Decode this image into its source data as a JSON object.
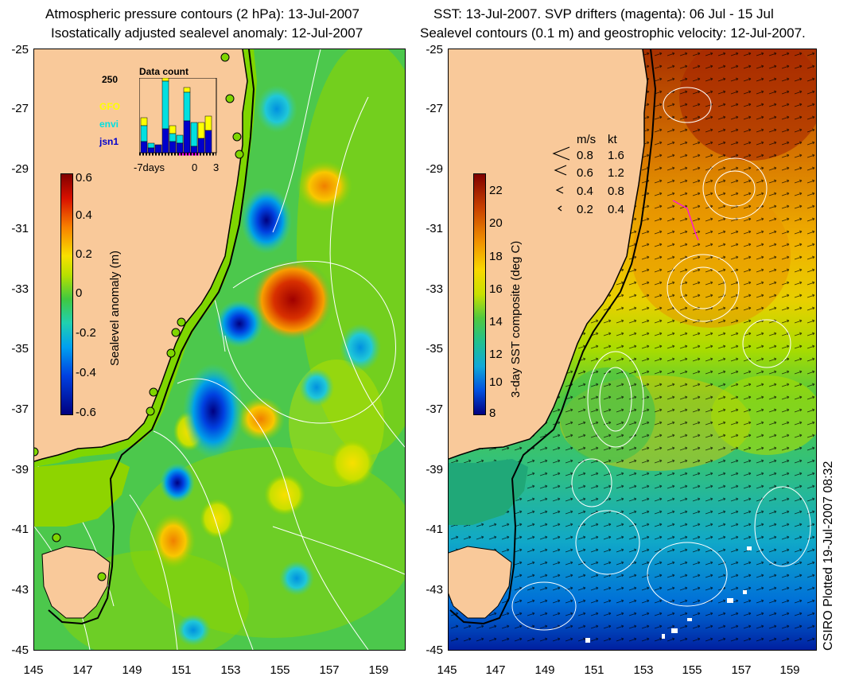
{
  "left_panel": {
    "title_line1": "Atmospheric pressure contours (2 hPa): 13-Jul-2007",
    "title_line2": "Isostatically adjusted sealevel anomaly: 12-Jul-2007",
    "colorbar_label": "Sealevel anomaly (m)",
    "colorbar_ticks": [
      "0.6",
      "0.4",
      "0.2",
      "0",
      "-0.2",
      "-0.4",
      "-0.6"
    ],
    "data_count": {
      "title": "Data count",
      "y_tick": "250",
      "x_ticks": [
        "-7days",
        "0",
        "3"
      ],
      "legend": [
        {
          "label": "GFO",
          "color": "#ffff00"
        },
        {
          "label": "envi",
          "color": "#00e0e0"
        },
        {
          "label": "jsn1",
          "color": "#0000cc"
        }
      ]
    }
  },
  "right_panel": {
    "title_line1": "SST: 13-Jul-2007. SVP drifters (magenta): 06 Jul - 15 Jul",
    "title_line2": "Sealevel contours (0.1 m) and geostrophic velocity: 12-Jul-2007.",
    "colorbar_label": "3-day SST composite (deg C)",
    "colorbar_ticks": [
      "22",
      "20",
      "18",
      "16",
      "14",
      "12",
      "10",
      "8"
    ],
    "velocity_legend": {
      "header_ms": "m/s",
      "header_kt": "kt",
      "rows": [
        {
          "ms": "0.8",
          "kt": "1.6"
        },
        {
          "ms": "0.6",
          "kt": "1.2"
        },
        {
          "ms": "0.4",
          "kt": "0.8"
        },
        {
          "ms": "0.2",
          "kt": "0.4"
        }
      ]
    }
  },
  "axes": {
    "y_ticks": [
      "-25",
      "-27",
      "-29",
      "-31",
      "-33",
      "-35",
      "-37",
      "-39",
      "-41",
      "-43",
      "-45"
    ],
    "x_ticks": [
      "145",
      "147",
      "149",
      "151",
      "153",
      "155",
      "157",
      "159"
    ]
  },
  "credit": "CSIRO Plotted 19-Jul-2007 08:32",
  "colors": {
    "land": "#f9c99a",
    "ocean_mid": "#44c844",
    "coast": "#000000"
  }
}
